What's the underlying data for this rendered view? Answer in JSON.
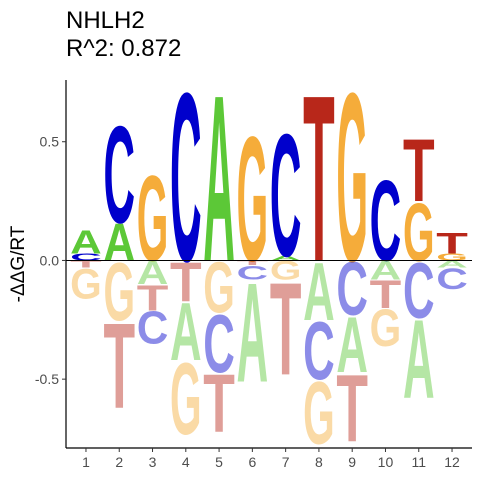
{
  "chart_data": {
    "type": "logo",
    "title": "NHLH2",
    "subtitle": "R^2: 0.872",
    "y_label": "-ΔΔG/RT",
    "x": [
      1,
      2,
      3,
      4,
      5,
      6,
      7,
      8,
      9,
      10,
      11,
      12
    ],
    "xticks": [
      1,
      2,
      3,
      4,
      5,
      6,
      7,
      8,
      9,
      10,
      11,
      12
    ],
    "xlim": [
      0.4,
      12.6
    ],
    "ylim": [
      -0.79,
      0.76
    ],
    "yticks": [
      -0.5,
      {
        "value": 0,
        "label": "0.0"
      },
      0.5
    ],
    "series": [
      {
        "name": "A",
        "color": "#5cc837",
        "values": [
          0.1,
          0.16,
          -0.1,
          -0.25,
          0.72,
          -0.43,
          0.02,
          -0.25,
          -0.24,
          -0.08,
          -0.34,
          -0.03
        ]
      },
      {
        "name": "C",
        "color": "#0000cc",
        "values": [
          0.03,
          0.42,
          -0.14,
          0.73,
          -0.25,
          -0.06,
          0.53,
          -0.25,
          -0.23,
          0.35,
          -0.24,
          -0.09
        ]
      },
      {
        "name": "G",
        "color": "#f5ac3a",
        "values": [
          -0.13,
          -0.25,
          0.37,
          -0.31,
          -0.22,
          0.54,
          -0.08,
          -0.27,
          0.73,
          -0.16,
          0.25,
          0.03
        ]
      },
      {
        "name": "T",
        "color": "#b8271a",
        "values": [
          -0.03,
          -0.37,
          -0.11,
          -0.17,
          -0.25,
          -0.02,
          -0.4,
          0.72,
          -0.29,
          -0.12,
          0.27,
          0.09
        ]
      }
    ]
  }
}
